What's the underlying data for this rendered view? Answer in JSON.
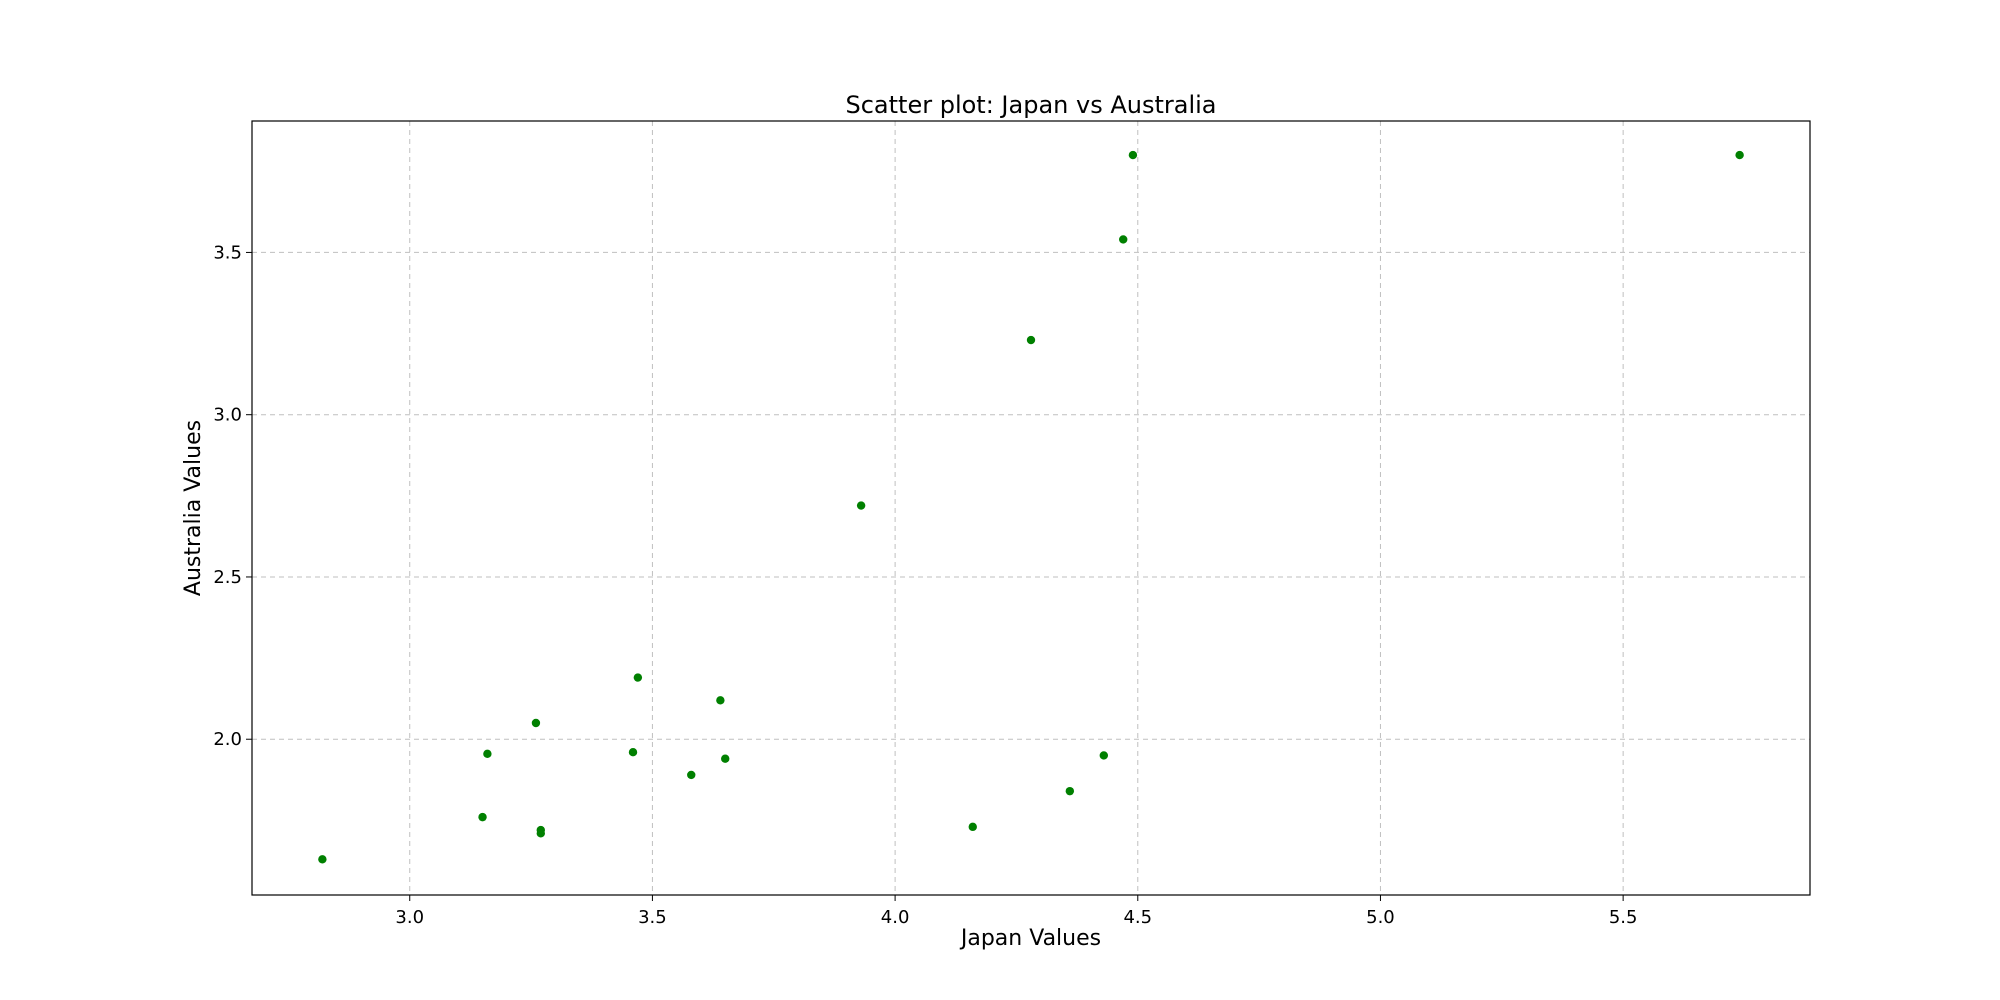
{
  "chart_data": {
    "type": "scatter",
    "title": "Scatter plot: Japan vs Australia",
    "xlabel": "Japan Values",
    "ylabel": "Australia Values",
    "xlim": [
      2.675,
      5.885
    ],
    "ylim": [
      1.52,
      3.905
    ],
    "x_ticks": [
      3.0,
      3.5,
      4.0,
      4.5,
      5.0,
      5.5
    ],
    "x_tick_labels": [
      "3.0",
      "3.5",
      "4.0",
      "4.5",
      "5.0",
      "5.5"
    ],
    "y_ticks": [
      2.0,
      2.5,
      3.0,
      3.5
    ],
    "y_tick_labels": [
      "2.0",
      "2.5",
      "3.0",
      "3.5"
    ],
    "grid": true,
    "marker_color": "#008000",
    "points": [
      {
        "x": 2.82,
        "y": 1.63
      },
      {
        "x": 3.15,
        "y": 1.76
      },
      {
        "x": 3.16,
        "y": 1.955
      },
      {
        "x": 3.26,
        "y": 2.05
      },
      {
        "x": 3.27,
        "y": 1.72
      },
      {
        "x": 3.27,
        "y": 1.71
      },
      {
        "x": 3.46,
        "y": 1.96
      },
      {
        "x": 3.47,
        "y": 2.19
      },
      {
        "x": 3.58,
        "y": 1.89
      },
      {
        "x": 3.64,
        "y": 2.12
      },
      {
        "x": 3.65,
        "y": 1.94
      },
      {
        "x": 3.93,
        "y": 2.72
      },
      {
        "x": 4.16,
        "y": 1.73
      },
      {
        "x": 4.28,
        "y": 3.23
      },
      {
        "x": 4.36,
        "y": 1.84
      },
      {
        "x": 4.43,
        "y": 1.95
      },
      {
        "x": 4.47,
        "y": 3.54
      },
      {
        "x": 4.49,
        "y": 3.8
      },
      {
        "x": 5.74,
        "y": 3.8
      }
    ]
  }
}
